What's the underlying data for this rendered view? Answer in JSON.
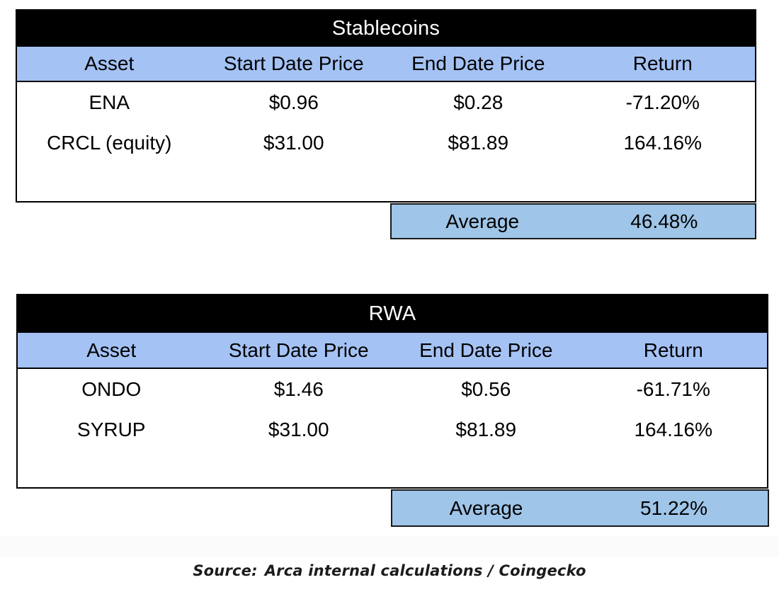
{
  "colors": {
    "title_bar_bg": "#000000",
    "title_bar_text": "#ffffff",
    "header_row_blue": "#a4c2f4",
    "average_row_blue": "#9fc5e8",
    "body_text": "#000000"
  },
  "tables": [
    {
      "title": "Stablecoins",
      "columns": [
        "Asset",
        "Start Date Price",
        "End Date Price",
        "Return"
      ],
      "rows": [
        {
          "asset": "ENA",
          "start": "$0.96",
          "end": "$0.28",
          "return": "-71.20%"
        },
        {
          "asset": "CRCL (equity)",
          "start": "$31.00",
          "end": "$81.89",
          "return": "164.16%"
        }
      ],
      "average_label": "Average",
      "average_value": "46.48%"
    },
    {
      "title": "RWA",
      "columns": [
        "Asset",
        "Start Date Price",
        "End Date Price",
        "Return"
      ],
      "rows": [
        {
          "asset": "ONDO",
          "start": "$1.46",
          "end": "$0.56",
          "return": "-61.71%"
        },
        {
          "asset": "SYRUP",
          "start": "$31.00",
          "end": "$81.89",
          "return": "164.16%"
        }
      ],
      "average_label": "Average",
      "average_value": "51.22%"
    }
  ],
  "source": {
    "label": "Source:",
    "text": "Arca internal calculations / Coingecko"
  }
}
